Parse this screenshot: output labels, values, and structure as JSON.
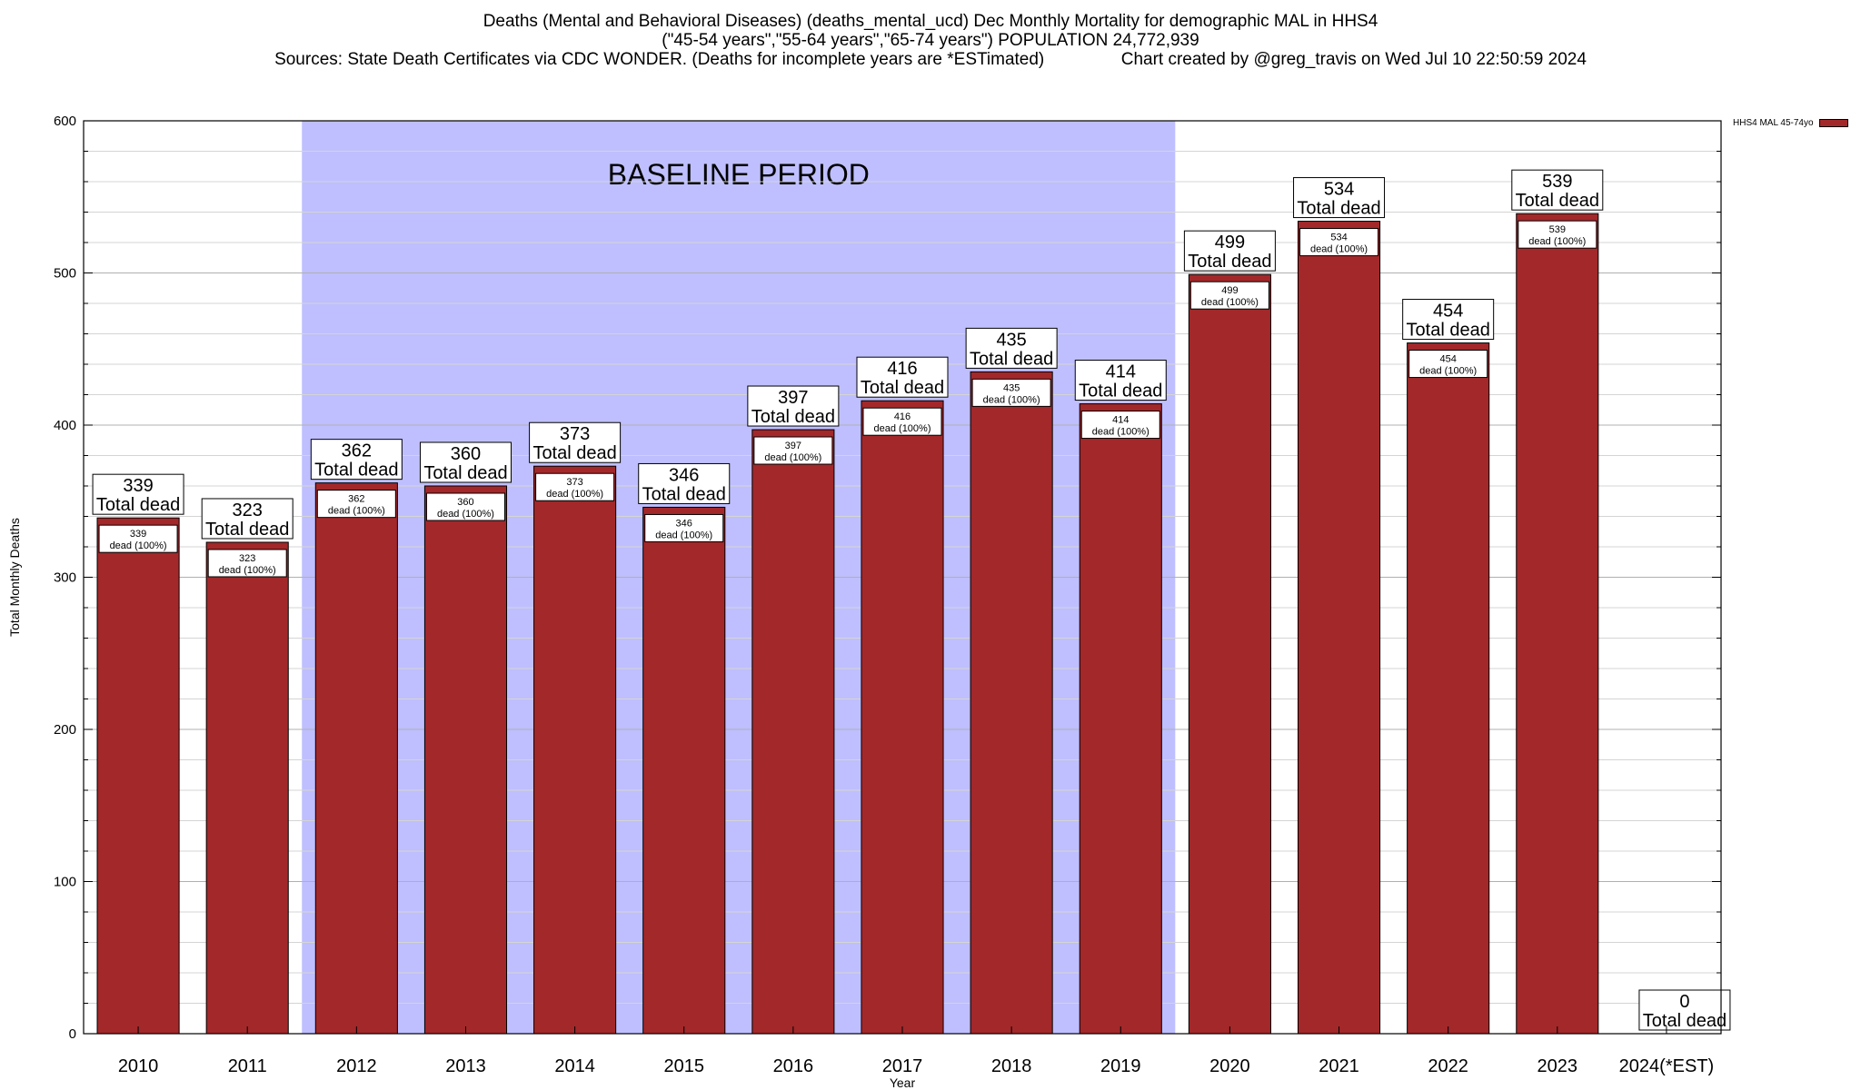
{
  "header": {
    "title_line1": "Deaths (Mental and Behavioral Diseases) (deaths_mental_ucd) Dec Monthly Mortality for demographic MAL in HHS4",
    "title_line2": "(\"45-54 years\",\"55-64 years\",\"65-74 years\") POPULATION 24,772,939",
    "title_line3": "Sources: State Death Certificates via CDC WONDER. (Deaths for incomplete years are *ESTimated)                Chart created by @greg_travis on Wed Jul 10 22:50:59 2024"
  },
  "chart_data": {
    "type": "bar",
    "title": "Deaths (Mental and Behavioral Diseases) (deaths_mental_ucd) Dec Monthly Mortality for demographic MAL in HHS4",
    "xlabel": "Year",
    "ylabel": "Total Monthly Deaths",
    "ylim": [
      0,
      600
    ],
    "yticks": [
      0,
      100,
      200,
      300,
      400,
      500,
      600
    ],
    "grid": true,
    "legend_placement": "top-right",
    "categories": [
      "2010",
      "2011",
      "2012",
      "2013",
      "2014",
      "2015",
      "2016",
      "2017",
      "2018",
      "2019",
      "2020",
      "2021",
      "2022",
      "2023",
      "2024(*EST)"
    ],
    "series": [
      {
        "name": "HHS4 MAL 45-74yo",
        "color": "#a3282a",
        "values": [
          339,
          323,
          362,
          360,
          373,
          346,
          397,
          416,
          435,
          414,
          499,
          534,
          454,
          539,
          0
        ]
      }
    ],
    "total_label_text": "Total dead",
    "inner_label_text": "dead (100%)",
    "baseline": {
      "label": "BASELINE PERIOD",
      "start": "2012",
      "end": "2019",
      "color": "#bfbfff"
    }
  }
}
